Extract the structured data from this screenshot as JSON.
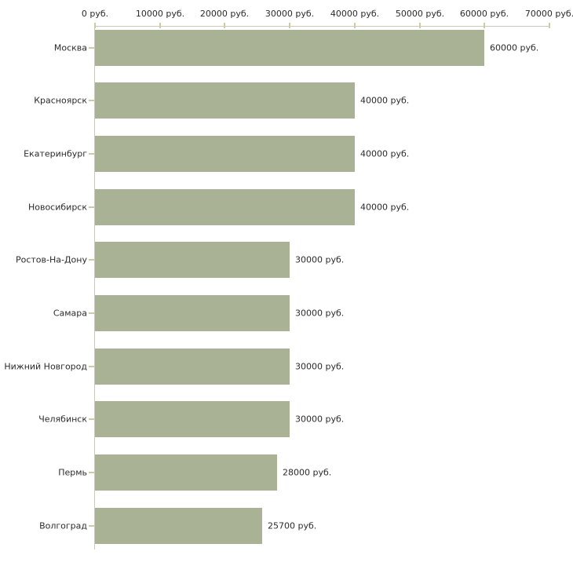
{
  "chart_data": {
    "type": "bar",
    "orientation": "horizontal",
    "title": "",
    "categories": [
      "Москва",
      "Красноярск",
      "Екатеринбург",
      "Новосибирск",
      "Ростов-На-Дону",
      "Самара",
      "Нижний Новгород",
      "Челябинск",
      "Пермь",
      "Волгоград"
    ],
    "values": [
      60000,
      40000,
      40000,
      40000,
      30000,
      30000,
      30000,
      30000,
      28000,
      25700
    ],
    "value_labels": [
      "60000 руб.",
      "40000 руб.",
      "40000 руб.",
      "40000 руб.",
      "30000 руб.",
      "30000 руб.",
      "30000 руб.",
      "30000 руб.",
      "28000 руб.",
      "25700 руб."
    ],
    "value_axis": {
      "position": "top",
      "min": 0,
      "max": 70000,
      "step": 10000,
      "tick_labels": [
        "0 руб.",
        "10000 руб.",
        "20000 руб.",
        "30000 руб.",
        "40000 руб.",
        "50000 руб.",
        "60000 руб.",
        "70000 руб."
      ]
    },
    "grid": false,
    "legend": false,
    "colors": {
      "bar": "#aab295",
      "axis_line": "#c9c9c0",
      "tick": "#cbcba4",
      "text": "#2b2b2b",
      "background": "#ffffff"
    }
  }
}
